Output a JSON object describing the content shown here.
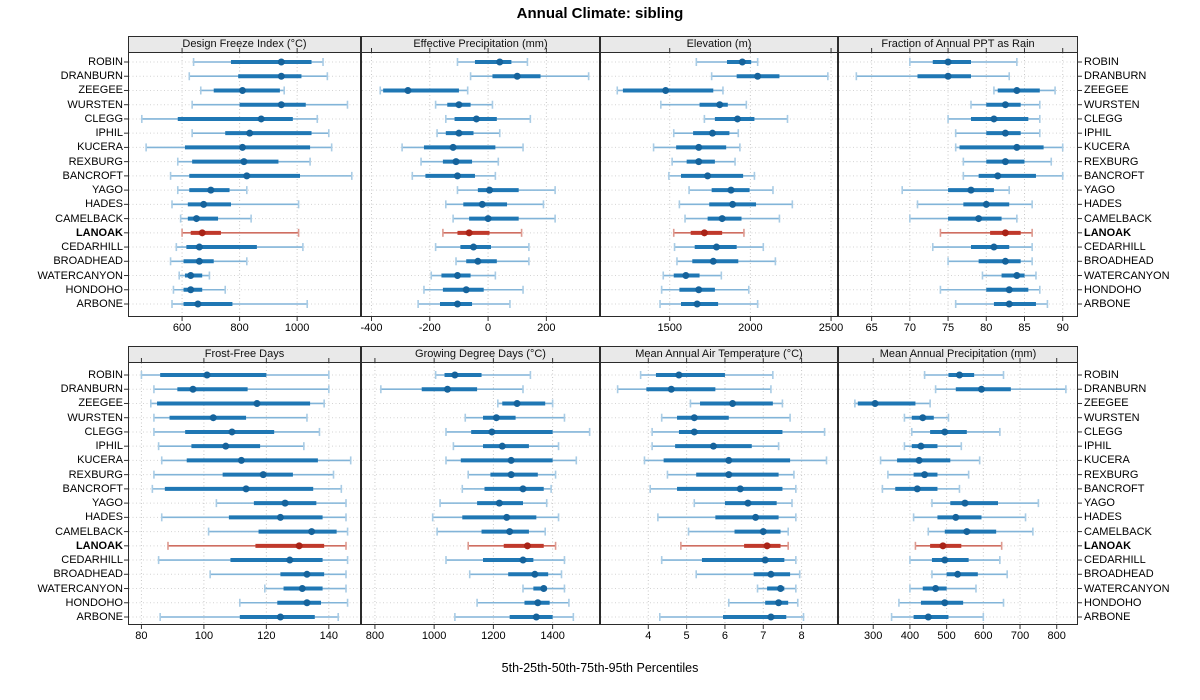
{
  "title": "Annual Climate: sibling",
  "caption": "5th-25th-50th-75th-95th Percentiles",
  "percentiles": [
    5,
    25,
    50,
    75,
    95
  ],
  "stations": [
    "ROBIN",
    "DRANBURN",
    "ZEEGEE",
    "WURSTEN",
    "CLEGG",
    "IPHIL",
    "KUCERA",
    "REXBURG",
    "BANCROFT",
    "YAGO",
    "HADES",
    "CAMELBACK",
    "LANOAK",
    "CEDARHILL",
    "BROADHEAD",
    "WATERCANYON",
    "HONDOHO",
    "ARBONE"
  ],
  "highlight_station": "LANOAK",
  "colors": {
    "series_main": "#1f77b4",
    "series_whisker": "#82b4d8",
    "series_cap": "#a9cce5",
    "series_dot": "#15639c",
    "highlight_main": "#c0392b",
    "highlight_whisker": "#cf6e61",
    "highlight_cap": "#dd9a90",
    "highlight_dot": "#a92317",
    "strip_bg": "#e9e9e9",
    "grid": "#c8c8c8",
    "border": "#2b2b2b"
  },
  "chart_data": [
    {
      "type": "interval-dotplot",
      "title": "Design Freeze Index (°C)",
      "xlim": [
        412,
        1222
      ],
      "ticks": [
        600,
        800,
        1000
      ],
      "grid": true,
      "values": [
        [
          640,
          770,
          945,
          1050,
          1090
        ],
        [
          625,
          795,
          945,
          1015,
          1105
        ],
        [
          665,
          710,
          810,
          940,
          955
        ],
        [
          635,
          800,
          945,
          1030,
          1175
        ],
        [
          460,
          585,
          875,
          985,
          1070
        ],
        [
          635,
          750,
          835,
          1050,
          1110
        ],
        [
          475,
          610,
          810,
          1045,
          1120
        ],
        [
          585,
          635,
          815,
          935,
          1045
        ],
        [
          560,
          625,
          825,
          1010,
          1190
        ],
        [
          585,
          625,
          700,
          765,
          825
        ],
        [
          565,
          620,
          675,
          770,
          1005
        ],
        [
          595,
          620,
          650,
          725,
          840
        ],
        [
          600,
          630,
          670,
          735,
          1005
        ],
        [
          580,
          615,
          660,
          860,
          1020
        ],
        [
          560,
          605,
          660,
          710,
          825
        ],
        [
          590,
          610,
          630,
          670,
          695
        ],
        [
          570,
          605,
          630,
          670,
          750
        ],
        [
          565,
          605,
          655,
          775,
          1035
        ]
      ]
    },
    {
      "type": "interval-dotplot",
      "title": "Effective Precipitation (mm)",
      "xlim": [
        -436,
        384
      ],
      "ticks": [
        -400,
        -200,
        0,
        200
      ],
      "grid": true,
      "values": [
        [
          -105,
          -45,
          40,
          80,
          135
        ],
        [
          -60,
          15,
          100,
          180,
          345
        ],
        [
          -370,
          -360,
          -275,
          -100,
          -70
        ],
        [
          -180,
          -140,
          -100,
          -60,
          15
        ],
        [
          -145,
          -115,
          -40,
          30,
          145
        ],
        [
          -175,
          -145,
          -100,
          -50,
          40
        ],
        [
          -295,
          -220,
          -120,
          25,
          120
        ],
        [
          -230,
          -155,
          -110,
          -55,
          35
        ],
        [
          -260,
          -215,
          -105,
          -45,
          25
        ],
        [
          -105,
          -35,
          5,
          105,
          230
        ],
        [
          -145,
          -85,
          -20,
          65,
          190
        ],
        [
          -120,
          -65,
          0,
          105,
          230
        ],
        [
          -155,
          -105,
          -65,
          5,
          115
        ],
        [
          -180,
          -95,
          -50,
          10,
          140
        ],
        [
          -110,
          -75,
          -35,
          30,
          140
        ],
        [
          -195,
          -160,
          -105,
          -60,
          25
        ],
        [
          -220,
          -155,
          -75,
          -15,
          120
        ],
        [
          -240,
          -165,
          -105,
          -55,
          75
        ]
      ]
    },
    {
      "type": "interval-dotplot",
      "title": "Elevation (m)",
      "xlim": [
        1068,
        2543
      ],
      "ticks": [
        1500,
        2000,
        2500
      ],
      "grid": true,
      "values": [
        [
          1665,
          1855,
          1950,
          2005,
          2045
        ],
        [
          1760,
          1915,
          2045,
          2180,
          2480
        ],
        [
          1175,
          1210,
          1475,
          1770,
          1830
        ],
        [
          1445,
          1685,
          1810,
          1860,
          1975
        ],
        [
          1715,
          1780,
          1920,
          2025,
          2230
        ],
        [
          1525,
          1645,
          1765,
          1870,
          1925
        ],
        [
          1400,
          1540,
          1680,
          1850,
          1935
        ],
        [
          1515,
          1605,
          1680,
          1780,
          1905
        ],
        [
          1495,
          1570,
          1735,
          1955,
          2025
        ],
        [
          1620,
          1760,
          1880,
          1995,
          2140
        ],
        [
          1560,
          1745,
          1890,
          2035,
          2260
        ],
        [
          1595,
          1735,
          1825,
          1945,
          2180
        ],
        [
          1525,
          1630,
          1715,
          1825,
          1960
        ],
        [
          1530,
          1655,
          1790,
          1915,
          2080
        ],
        [
          1545,
          1640,
          1770,
          1925,
          2155
        ],
        [
          1460,
          1525,
          1600,
          1685,
          1820
        ],
        [
          1450,
          1560,
          1680,
          1780,
          1990
        ],
        [
          1440,
          1570,
          1670,
          1800,
          2045
        ]
      ]
    },
    {
      "type": "interval-dotplot",
      "title": "Fraction of Annual PPT as Rain",
      "xlim": [
        60.6,
        92
      ],
      "ticks": [
        65,
        70,
        75,
        80,
        85,
        90
      ],
      "grid": true,
      "values": [
        [
          70,
          73,
          75,
          78,
          84
        ],
        [
          63,
          71,
          75,
          78,
          83
        ],
        [
          81,
          81.5,
          84,
          87,
          89
        ],
        [
          78,
          80,
          82.5,
          84.5,
          87
        ],
        [
          75,
          78,
          81,
          85.5,
          87
        ],
        [
          76,
          80,
          82.5,
          84.5,
          87
        ],
        [
          76,
          76.5,
          84,
          87.5,
          90
        ],
        [
          77,
          80,
          82.5,
          85,
          88.5
        ],
        [
          77,
          79,
          81.5,
          86.5,
          90
        ],
        [
          69,
          75,
          78,
          81,
          83
        ],
        [
          71,
          77,
          80,
          83,
          86
        ],
        [
          70,
          75,
          79,
          82,
          84
        ],
        [
          74,
          80.5,
          82.5,
          84.5,
          86
        ],
        [
          73,
          78,
          81,
          83,
          86
        ],
        [
          75,
          79,
          82.5,
          84.5,
          86
        ],
        [
          79.5,
          82,
          84,
          85,
          86.5
        ],
        [
          74,
          80,
          83,
          85.5,
          87
        ],
        [
          76,
          81,
          83,
          86.5,
          88
        ]
      ]
    },
    {
      "type": "interval-dotplot",
      "title": "Frost-Free Days",
      "xlim": [
        75.7,
        150.3
      ],
      "ticks": [
        80,
        100,
        120,
        140
      ],
      "grid": true,
      "values": [
        [
          80,
          86,
          101,
          120,
          140
        ],
        [
          84,
          91.5,
          96.5,
          114,
          140
        ],
        [
          83,
          85,
          117,
          134,
          138.5
        ],
        [
          84,
          89,
          103,
          113.5,
          133
        ],
        [
          84,
          94,
          109,
          122.5,
          137
        ],
        [
          85.5,
          96,
          107,
          118,
          132
        ],
        [
          86.5,
          94.5,
          112,
          136.5,
          147
        ],
        [
          84,
          106,
          119,
          128.5,
          141.5
        ],
        [
          83.5,
          87.5,
          113.5,
          135,
          144
        ],
        [
          104,
          116,
          126,
          136,
          145.5
        ],
        [
          86.5,
          108,
          124.5,
          138,
          145.5
        ],
        [
          101.5,
          117.5,
          134.5,
          142.5,
          146
        ],
        [
          88.5,
          116.5,
          130.5,
          138.5,
          145.5
        ],
        [
          85.5,
          108.5,
          127.5,
          138,
          146
        ],
        [
          102,
          124.5,
          133,
          138.5,
          145.5
        ],
        [
          119.5,
          125.5,
          131.5,
          138,
          145.5
        ],
        [
          111.5,
          123.5,
          133,
          137.5,
          146
        ],
        [
          86,
          111.5,
          124.5,
          135.5,
          143
        ]
      ]
    },
    {
      "type": "interval-dotplot",
      "title": "Growing Degree Days (°C)",
      "xlim": [
        753,
        1560
      ],
      "ticks": [
        800,
        1000,
        1200,
        1400
      ],
      "grid": true,
      "values": [
        [
          1005,
          1035,
          1070,
          1160,
          1325
        ],
        [
          820,
          958,
          1045,
          1145,
          1300
        ],
        [
          1215,
          1230,
          1280,
          1375,
          1400
        ],
        [
          1105,
          1165,
          1210,
          1275,
          1440
        ],
        [
          1040,
          1125,
          1195,
          1400,
          1525
        ],
        [
          1065,
          1165,
          1230,
          1320,
          1420
        ],
        [
          1040,
          1090,
          1260,
          1400,
          1480
        ],
        [
          1115,
          1190,
          1260,
          1350,
          1410
        ],
        [
          1095,
          1170,
          1300,
          1370,
          1395
        ],
        [
          1020,
          1145,
          1220,
          1300,
          1380
        ],
        [
          995,
          1095,
          1245,
          1345,
          1420
        ],
        [
          1010,
          1160,
          1255,
          1320,
          1375
        ],
        [
          1115,
          1235,
          1315,
          1370,
          1410
        ],
        [
          1040,
          1165,
          1300,
          1335,
          1440
        ],
        [
          1120,
          1250,
          1340,
          1385,
          1430
        ],
        [
          1300,
          1335,
          1370,
          1380,
          1440
        ],
        [
          1145,
          1305,
          1350,
          1390,
          1455
        ],
        [
          1070,
          1255,
          1345,
          1400,
          1470
        ]
      ]
    },
    {
      "type": "interval-dotplot",
      "title": "Mean Annual Air Temperature (°C)",
      "xlim": [
        2.74,
        8.95
      ],
      "ticks": [
        4,
        5,
        6,
        7,
        8
      ],
      "grid": true,
      "values": [
        [
          3.8,
          4.2,
          4.8,
          6.0,
          7.25
        ],
        [
          3.2,
          3.95,
          4.6,
          5.75,
          7.2
        ],
        [
          5.1,
          5.35,
          6.2,
          7.25,
          7.5
        ],
        [
          4.35,
          4.75,
          5.2,
          6.1,
          7.7
        ],
        [
          4.1,
          4.8,
          5.2,
          7.5,
          8.6
        ],
        [
          4.1,
          4.7,
          5.7,
          6.7,
          7.4
        ],
        [
          3.9,
          4.4,
          6.1,
          7.7,
          8.65
        ],
        [
          4.5,
          5.25,
          6.1,
          7.4,
          7.8
        ],
        [
          4.05,
          4.75,
          6.4,
          7.5,
          7.85
        ],
        [
          5.2,
          6.0,
          6.6,
          7.35,
          7.75
        ],
        [
          4.25,
          5.75,
          6.8,
          7.4,
          7.85
        ],
        [
          5.05,
          6.25,
          7.0,
          7.45,
          7.65
        ],
        [
          4.85,
          6.5,
          7.1,
          7.45,
          7.65
        ],
        [
          4.35,
          5.4,
          7.05,
          7.55,
          7.85
        ],
        [
          5.25,
          6.75,
          7.2,
          7.7,
          7.95
        ],
        [
          6.85,
          7.1,
          7.45,
          7.55,
          7.85
        ],
        [
          6.1,
          7.05,
          7.4,
          7.65,
          7.9
        ],
        [
          4.3,
          5.95,
          7.2,
          7.6,
          8.05
        ]
      ]
    },
    {
      "type": "interval-dotplot",
      "title": "Mean Annual Precipitation (mm)",
      "xlim": [
        204,
        858
      ],
      "ticks": [
        300,
        400,
        500,
        600,
        700,
        800
      ],
      "grid": true,
      "values": [
        [
          440,
          505,
          535,
          575,
          655
        ],
        [
          470,
          525,
          595,
          675,
          825
        ],
        [
          250,
          258,
          305,
          415,
          455
        ],
        [
          385,
          405,
          435,
          465,
          505
        ],
        [
          405,
          455,
          495,
          555,
          645
        ],
        [
          385,
          405,
          430,
          475,
          540
        ],
        [
          320,
          365,
          425,
          510,
          590
        ],
        [
          340,
          410,
          440,
          475,
          560
        ],
        [
          325,
          360,
          420,
          475,
          535
        ],
        [
          460,
          510,
          550,
          640,
          750
        ],
        [
          410,
          475,
          525,
          595,
          715
        ],
        [
          450,
          495,
          555,
          635,
          735
        ],
        [
          415,
          455,
          490,
          540,
          650
        ],
        [
          400,
          460,
          495,
          560,
          645
        ],
        [
          460,
          500,
          530,
          585,
          665
        ],
        [
          400,
          435,
          470,
          500,
          580
        ],
        [
          370,
          430,
          495,
          545,
          655
        ],
        [
          350,
          410,
          450,
          505,
          600
        ]
      ]
    }
  ]
}
